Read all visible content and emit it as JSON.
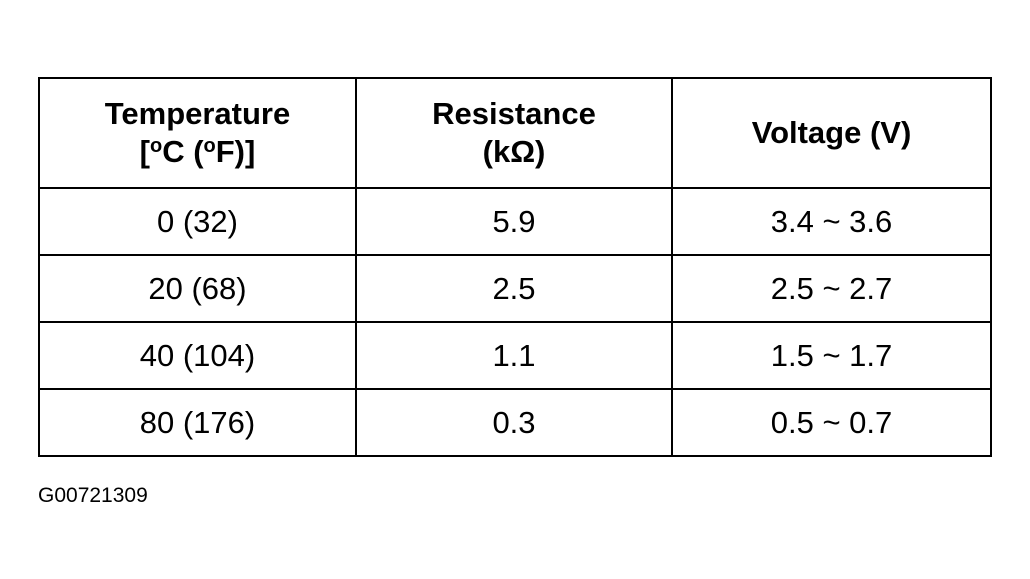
{
  "table": {
    "headers": [
      {
        "line1": "Temperature",
        "line2_open": "[",
        "deg1": "o",
        "c": "C (",
        "deg2": "o",
        "f": "F)]"
      },
      {
        "line1": "Resistance",
        "line2": "(kΩ)"
      },
      {
        "line1": "Voltage (V)"
      }
    ],
    "rows": [
      [
        "0 (32)",
        "5.9",
        "3.4 ~ 3.6"
      ],
      [
        "20 (68)",
        "2.5",
        "2.5 ~ 2.7"
      ],
      [
        "40 (104)",
        "1.1",
        "1.5 ~ 1.7"
      ],
      [
        "80 (176)",
        "0.3",
        "0.5 ~ 0.7"
      ]
    ]
  },
  "caption": "G00721309"
}
